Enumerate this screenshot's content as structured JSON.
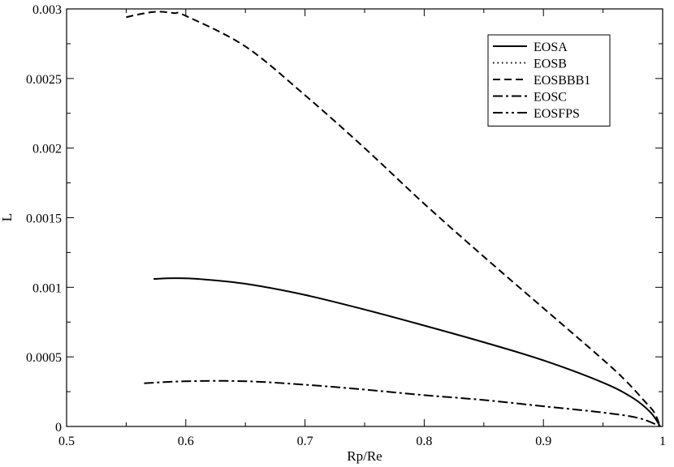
{
  "chart_data": {
    "type": "line",
    "title": "",
    "xlabel": "Rp/Re",
    "ylabel": "L",
    "xlim": [
      0.5,
      1.0
    ],
    "ylim": [
      0,
      0.003
    ],
    "xticks": [
      0.5,
      0.6,
      0.7,
      0.8,
      0.9,
      1.0
    ],
    "xtick_labels": [
      "0.5",
      "0.6",
      "0.7",
      "0.8",
      "0.9",
      "1"
    ],
    "yticks": [
      0,
      0.0005,
      0.001,
      0.0015,
      0.002,
      0.0025,
      0.003
    ],
    "ytick_labels": [
      "0",
      "0.0005",
      "0.001",
      "0.0015",
      "0.002",
      "0.0025",
      "0.003"
    ],
    "grid": false,
    "legend_position": "top-right",
    "series": [
      {
        "name": "EOSA",
        "dash": "solid",
        "x": [
          0.573,
          0.59,
          0.61,
          0.65,
          0.7,
          0.75,
          0.8,
          0.85,
          0.9,
          0.95,
          0.975,
          0.99,
          0.998
        ],
        "y": [
          0.00106,
          0.001065,
          0.00106,
          0.001025,
          0.000945,
          0.00084,
          0.000725,
          0.000605,
          0.000475,
          0.000315,
          0.000205,
          0.0001,
          0.0
        ]
      },
      {
        "name": "EOSB",
        "dash": "dotted",
        "x": [],
        "y": []
      },
      {
        "name": "EOSBBB1",
        "dash": "dashed",
        "x": [
          0.55,
          0.56,
          0.575,
          0.59,
          0.6,
          0.65,
          0.7,
          0.75,
          0.8,
          0.85,
          0.9,
          0.95,
          0.97,
          0.985,
          0.993,
          0.998
        ],
        "y": [
          0.00294,
          0.00296,
          0.00298,
          0.00297,
          0.00295,
          0.00273,
          0.00238,
          0.002,
          0.0016,
          0.00122,
          0.00085,
          0.00048,
          0.00032,
          0.00018,
          0.0001,
          0.0
        ]
      },
      {
        "name": "EOSC",
        "dash": "dashdot",
        "x": [
          0.565,
          0.6,
          0.65,
          0.7,
          0.75,
          0.8,
          0.85,
          0.9,
          0.95,
          0.98,
          0.998
        ],
        "y": [
          0.00031,
          0.000325,
          0.000325,
          0.0003,
          0.000265,
          0.000225,
          0.00019,
          0.000145,
          0.0001,
          6e-05,
          0.0
        ]
      },
      {
        "name": "EOSFPS",
        "dash": "dashdotdot",
        "x": [],
        "y": []
      }
    ]
  }
}
